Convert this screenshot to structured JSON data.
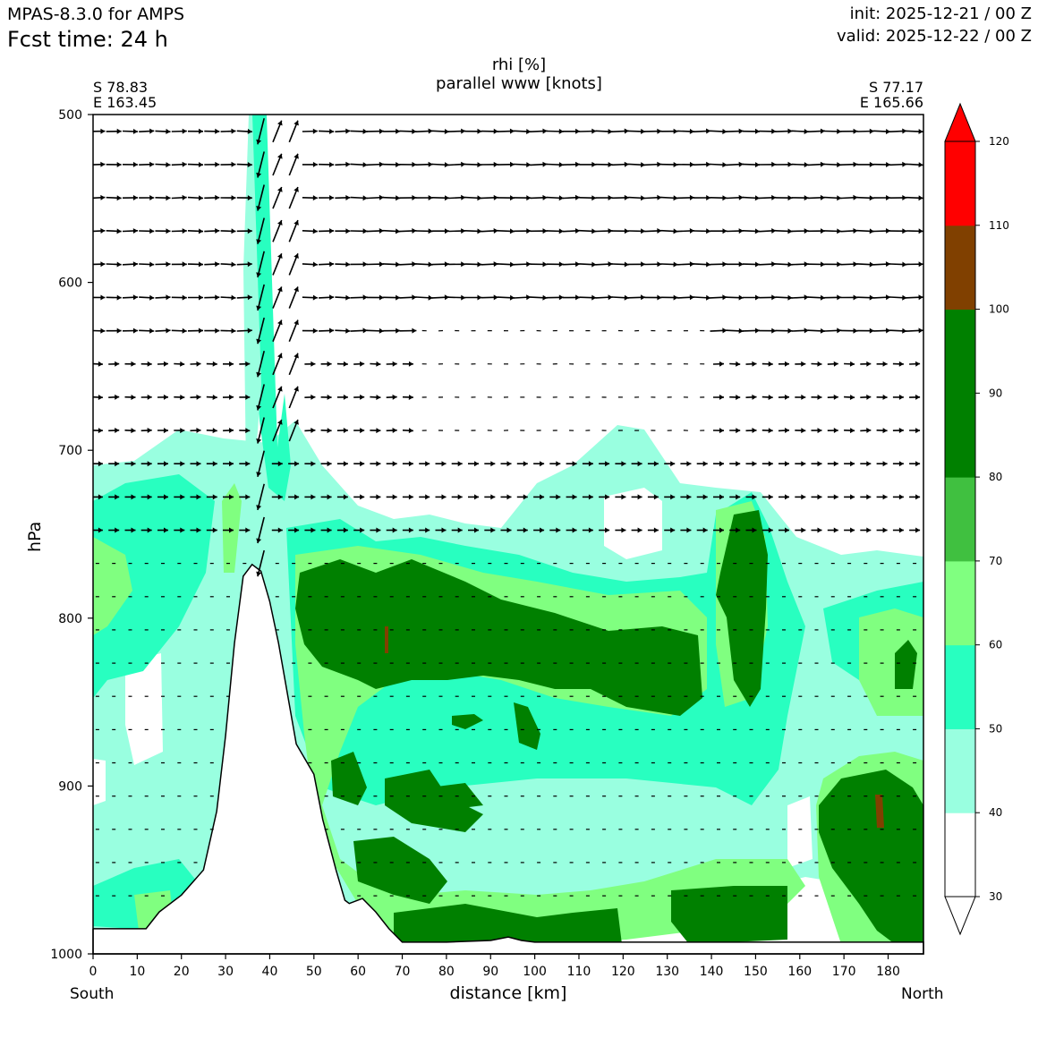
{
  "header": {
    "model": "MPAS-8.3.0 for AMPS",
    "forecast": "Fcst time:   24 h",
    "init": "init: 2025-12-21 / 00 Z",
    "valid": "valid: 2025-12-22 / 00 Z"
  },
  "title": {
    "line1": "rhi [%]",
    "line2": "parallel www [knots]"
  },
  "endpoints": {
    "start_lat": "S 78.83",
    "start_lon": "E 163.45",
    "end_lat": "S 77.17",
    "end_lon": "E 165.66"
  },
  "axis": {
    "xlabel": "distance [km]",
    "ylabel": "hPa",
    "south": "South",
    "north": "North"
  },
  "colors": {
    "c30": "#ffffff",
    "c40": "#99ffe0",
    "c50": "#28ffc0",
    "c60": "#80ff80",
    "c70": "#40c040",
    "c80": "#008000",
    "c100": "#804000",
    "c110": "#ff0000"
  },
  "chart_data": {
    "type": "contourf",
    "x": {
      "label": "distance [km]",
      "range": [
        0,
        188
      ],
      "ticks": [
        0,
        10,
        20,
        30,
        40,
        50,
        60,
        70,
        80,
        90,
        100,
        110,
        120,
        130,
        140,
        150,
        160,
        170,
        180
      ]
    },
    "y": {
      "label": "hPa",
      "range": [
        1000,
        500
      ],
      "ticks": [
        500,
        600,
        700,
        800,
        900,
        1000
      ]
    },
    "colorbar": {
      "levels": [
        30,
        40,
        50,
        60,
        70,
        80,
        90,
        100,
        110,
        120
      ],
      "colors": [
        "#ffffff",
        "#99ffe0",
        "#28ffc0",
        "#80ff80",
        "#40c040",
        "#008000",
        "#008000",
        "#804000",
        "#ff0000"
      ],
      "extend": "both"
    },
    "terrain_profile": [
      [
        0,
        985
      ],
      [
        12,
        985
      ],
      [
        15,
        975
      ],
      [
        20,
        965
      ],
      [
        25,
        950
      ],
      [
        28,
        915
      ],
      [
        30,
        870
      ],
      [
        32,
        815
      ],
      [
        34,
        775
      ],
      [
        36,
        768
      ],
      [
        38,
        772
      ],
      [
        40,
        790
      ],
      [
        42,
        815
      ],
      [
        44,
        845
      ],
      [
        46,
        875
      ],
      [
        50,
        893
      ],
      [
        52,
        920
      ],
      [
        55,
        950
      ],
      [
        57,
        968
      ],
      [
        58,
        970
      ],
      [
        61,
        967
      ],
      [
        64,
        975
      ],
      [
        67,
        985
      ],
      [
        70,
        993
      ],
      [
        80,
        993
      ],
      [
        90,
        992
      ],
      [
        94,
        990
      ],
      [
        97,
        992
      ],
      [
        100,
        993
      ],
      [
        188,
        993
      ]
    ],
    "ridge_jet": [
      [
        38.5,
        500
      ],
      [
        41,
        690
      ]
    ],
    "vectors_note": "parallel wind vectors drawn on grid"
  }
}
